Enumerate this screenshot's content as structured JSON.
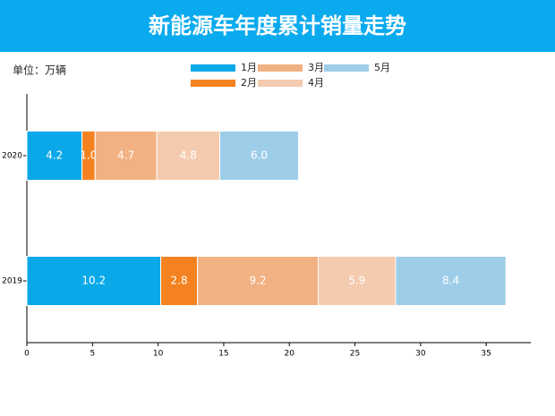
{
  "chart_data": {
    "type": "stacked_barh",
    "title": "新能源车年度累计销量走势",
    "unit_label": "单位：万辆",
    "categories": [
      "2020",
      "2019"
    ],
    "series": [
      {
        "name": "1月",
        "color": "#0aa8e8",
        "values": [
          4.2,
          10.2
        ],
        "value_labels": [
          "4.2",
          "10.2"
        ]
      },
      {
        "name": "2月",
        "color": "#f58220",
        "values": [
          1.0,
          2.8
        ],
        "value_labels": [
          "1.0",
          "2.8"
        ]
      },
      {
        "name": "3月",
        "color": "#f2b183",
        "values": [
          4.7,
          9.2
        ],
        "value_labels": [
          "4.7",
          "9.2"
        ]
      },
      {
        "name": "4月",
        "color": "#f5cbb0",
        "values": [
          4.8,
          5.9
        ],
        "value_labels": [
          "4.8",
          "5.9"
        ]
      },
      {
        "name": "5月",
        "color": "#9ecde9",
        "values": [
          6.0,
          8.4
        ],
        "value_labels": [
          "6.0",
          "8.4"
        ]
      }
    ],
    "xlim": [
      0,
      38.4
    ],
    "xticks": [
      0,
      5,
      10,
      15,
      20,
      25,
      30,
      35
    ],
    "legend": "upper center",
    "grid": false
  }
}
